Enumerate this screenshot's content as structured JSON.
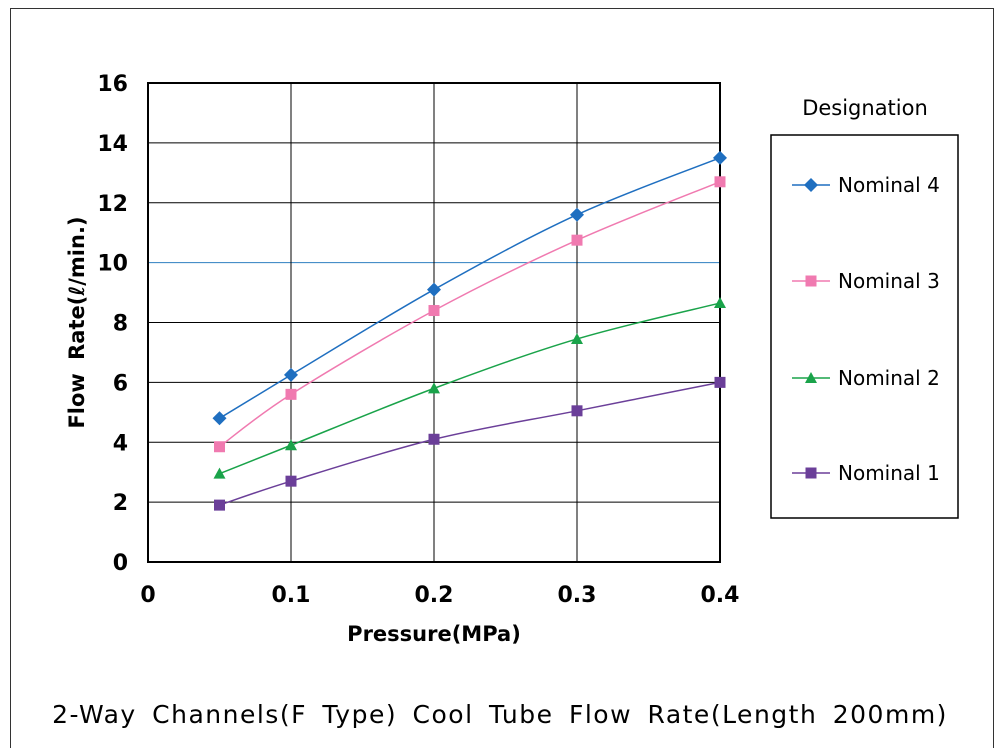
{
  "caption": "2-Way Channels(F Type) Cool Tube Flow Rate(Length 200mm)",
  "chart_data": {
    "type": "line",
    "title": "2-Way Channels(F Type) Cool Tube Flow Rate(Length 200mm)",
    "xlabel": "Pressure(MPa)",
    "ylabel": "Flow Rate(ℓ/min.)",
    "xlim": [
      0,
      0.4
    ],
    "ylim": [
      0,
      16
    ],
    "xticks": [
      "0",
      "0.1",
      "0.2",
      "0.3",
      "0.4"
    ],
    "yticks": [
      "0",
      "2",
      "4",
      "6",
      "8",
      "10",
      "12",
      "14",
      "16"
    ],
    "grid": true,
    "legend_title": "Designation",
    "legend_position": "right",
    "x": [
      0.05,
      0.1,
      0.2,
      0.3,
      0.4
    ],
    "series": [
      {
        "name": "Nominal 4",
        "marker": "diamond",
        "color": "#1f6fc0",
        "values": [
          4.8,
          6.25,
          9.1,
          11.6,
          13.5
        ]
      },
      {
        "name": "Nominal 3",
        "marker": "square",
        "color": "#f07ab0",
        "values": [
          3.85,
          5.6,
          8.4,
          10.75,
          12.7
        ]
      },
      {
        "name": "Nominal 2",
        "marker": "triangle",
        "color": "#1aa34a",
        "values": [
          2.95,
          3.9,
          5.8,
          7.45,
          8.65
        ]
      },
      {
        "name": "Nominal 1",
        "marker": "square",
        "color": "#6b3f99",
        "values": [
          1.9,
          2.7,
          4.1,
          5.05,
          6.0
        ]
      }
    ]
  }
}
